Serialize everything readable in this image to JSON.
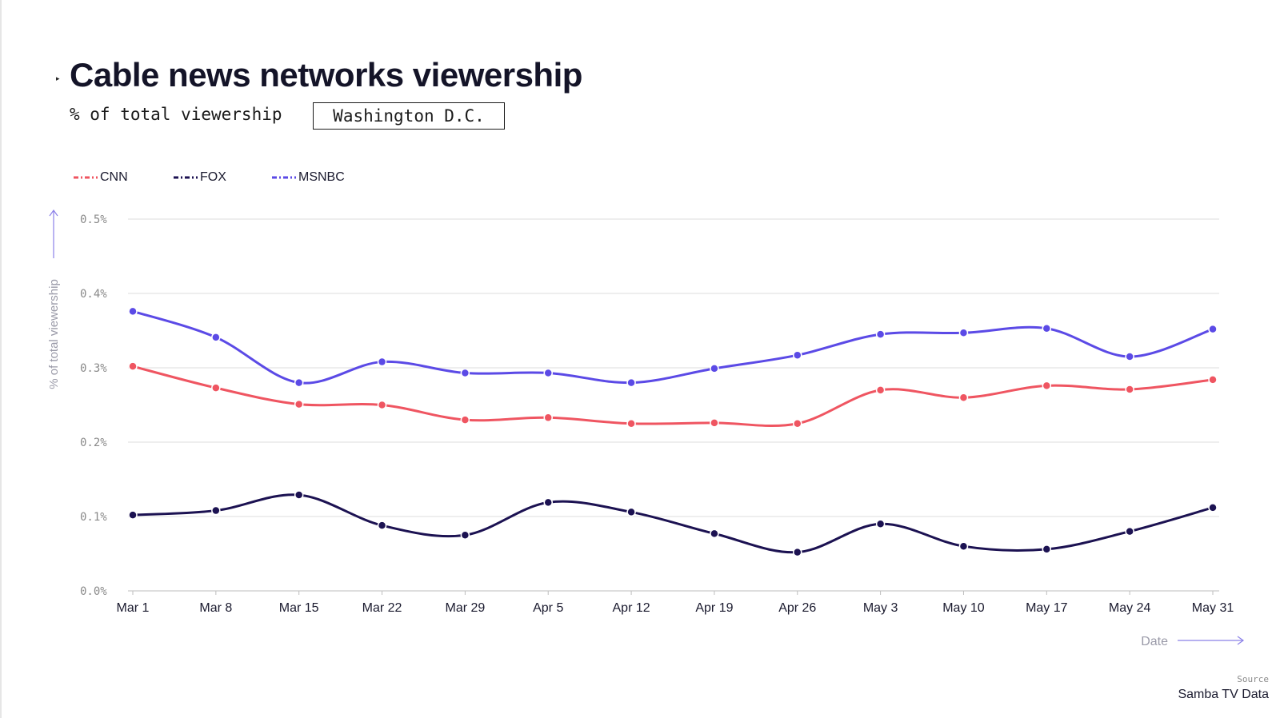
{
  "header": {
    "title": "Cable news networks viewership",
    "subtitle": "% of total viewership",
    "region_selected": "Washington D.C."
  },
  "footer": {
    "source_label": "Source",
    "source_value": "Samba TV Data"
  },
  "colors": {
    "CNN": "#ef5561",
    "FOX": "#1c1252",
    "MSNBC": "#5b4ae6",
    "grid": "#dddddd",
    "axis_arrow": "#8b80e8"
  },
  "chart_data": {
    "type": "line",
    "title": "Cable news networks viewership",
    "subtitle": "% of total viewership",
    "xlabel": "Date",
    "ylabel": "% of total viewership",
    "x": [
      "Mar 1",
      "Mar 8",
      "Mar 15",
      "Mar 22",
      "Mar 29",
      "Apr 5",
      "Apr 12",
      "Apr 19",
      "Apr 26",
      "May 3",
      "May 10",
      "May 17",
      "May 24",
      "May 31"
    ],
    "y_ticks": [
      "0.0%",
      "0.1%",
      "0.2%",
      "0.3%",
      "0.4%",
      "0.5%"
    ],
    "ylim": [
      0,
      0.5
    ],
    "grid": true,
    "legend_position": "top-left",
    "series": [
      {
        "name": "CNN",
        "values": [
          0.302,
          0.273,
          0.251,
          0.25,
          0.23,
          0.233,
          0.225,
          0.226,
          0.225,
          0.27,
          0.26,
          0.276,
          0.271,
          0.284
        ]
      },
      {
        "name": "FOX",
        "values": [
          0.102,
          0.108,
          0.129,
          0.088,
          0.075,
          0.119,
          0.106,
          0.077,
          0.052,
          0.09,
          0.06,
          0.056,
          0.08,
          0.112
        ]
      },
      {
        "name": "MSNBC",
        "values": [
          0.376,
          0.341,
          0.28,
          0.308,
          0.293,
          0.293,
          0.28,
          0.299,
          0.317,
          0.345,
          0.347,
          0.353,
          0.315,
          0.352
        ]
      }
    ]
  }
}
